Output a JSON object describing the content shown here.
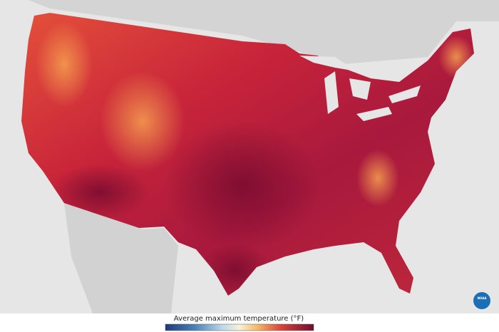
{
  "legend": {
    "title": "Average maximum temperature (°F)"
  },
  "logo": {
    "text": "NOAA"
  }
}
